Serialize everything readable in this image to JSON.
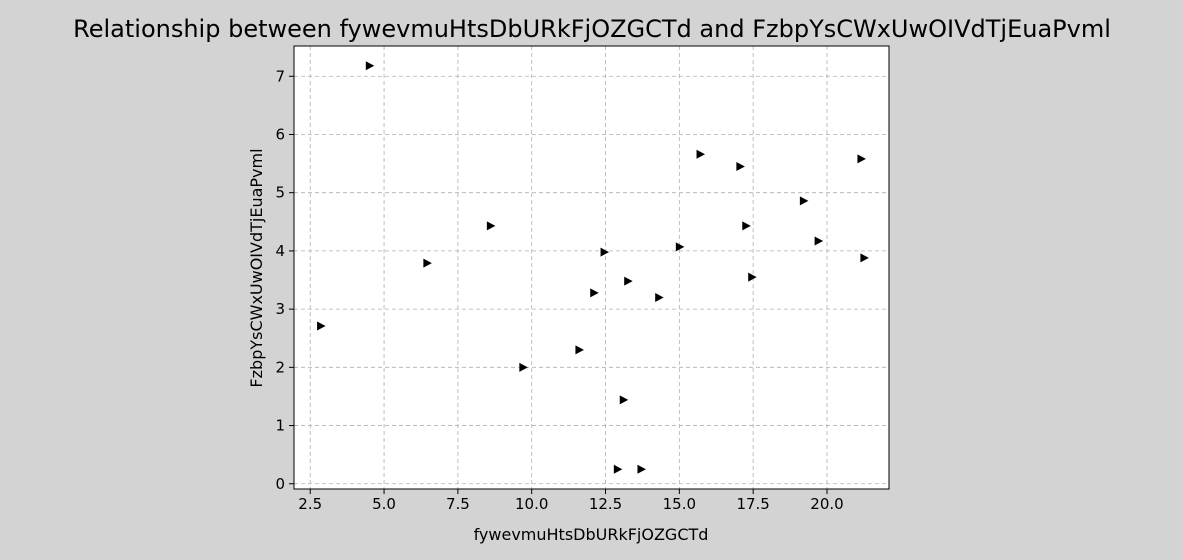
{
  "chart_data": {
    "type": "scatter",
    "title": "Relationship between fywevmuHtsDbURkFjOZGCTd and FzbpYsCWxUwOIVdTjEuaPvml",
    "xlabel": "fywevmuHtsDbURkFjOZGCTd",
    "ylabel": "FzbpYsCWxUwOIVdTjEuaPvml",
    "xlim": [
      1.95,
      22.1
    ],
    "ylim": [
      -0.09,
      7.52
    ],
    "xticks": [
      2.5,
      5.0,
      7.5,
      10.0,
      12.5,
      15.0,
      17.5,
      20.0
    ],
    "xtick_labels": [
      "2.5",
      "5.0",
      "7.5",
      "10.0",
      "12.5",
      "15.0",
      "17.5",
      "20.0"
    ],
    "yticks": [
      0,
      1,
      2,
      3,
      4,
      5,
      6,
      7
    ],
    "ytick_labels": [
      "0",
      "1",
      "2",
      "3",
      "4",
      "5",
      "6",
      "7"
    ],
    "grid": true,
    "marker": "triangle-right",
    "marker_color": "#000000",
    "background": "#d3d3d3",
    "plot_background": "#ffffff",
    "points": [
      {
        "x": 2.85,
        "y": 2.71
      },
      {
        "x": 4.5,
        "y": 7.18
      },
      {
        "x": 6.45,
        "y": 3.79
      },
      {
        "x": 8.6,
        "y": 4.43
      },
      {
        "x": 9.7,
        "y": 2.0
      },
      {
        "x": 11.6,
        "y": 2.3
      },
      {
        "x": 12.1,
        "y": 3.28
      },
      {
        "x": 12.45,
        "y": 3.98
      },
      {
        "x": 12.9,
        "y": 0.25
      },
      {
        "x": 13.1,
        "y": 1.44
      },
      {
        "x": 13.25,
        "y": 3.48
      },
      {
        "x": 13.7,
        "y": 0.25
      },
      {
        "x": 14.3,
        "y": 3.2
      },
      {
        "x": 15.0,
        "y": 4.07
      },
      {
        "x": 15.7,
        "y": 5.66
      },
      {
        "x": 17.05,
        "y": 5.45
      },
      {
        "x": 17.25,
        "y": 4.43
      },
      {
        "x": 17.45,
        "y": 3.55
      },
      {
        "x": 19.2,
        "y": 4.86
      },
      {
        "x": 19.7,
        "y": 4.17
      },
      {
        "x": 21.15,
        "y": 5.58
      },
      {
        "x": 21.25,
        "y": 3.88
      }
    ]
  }
}
